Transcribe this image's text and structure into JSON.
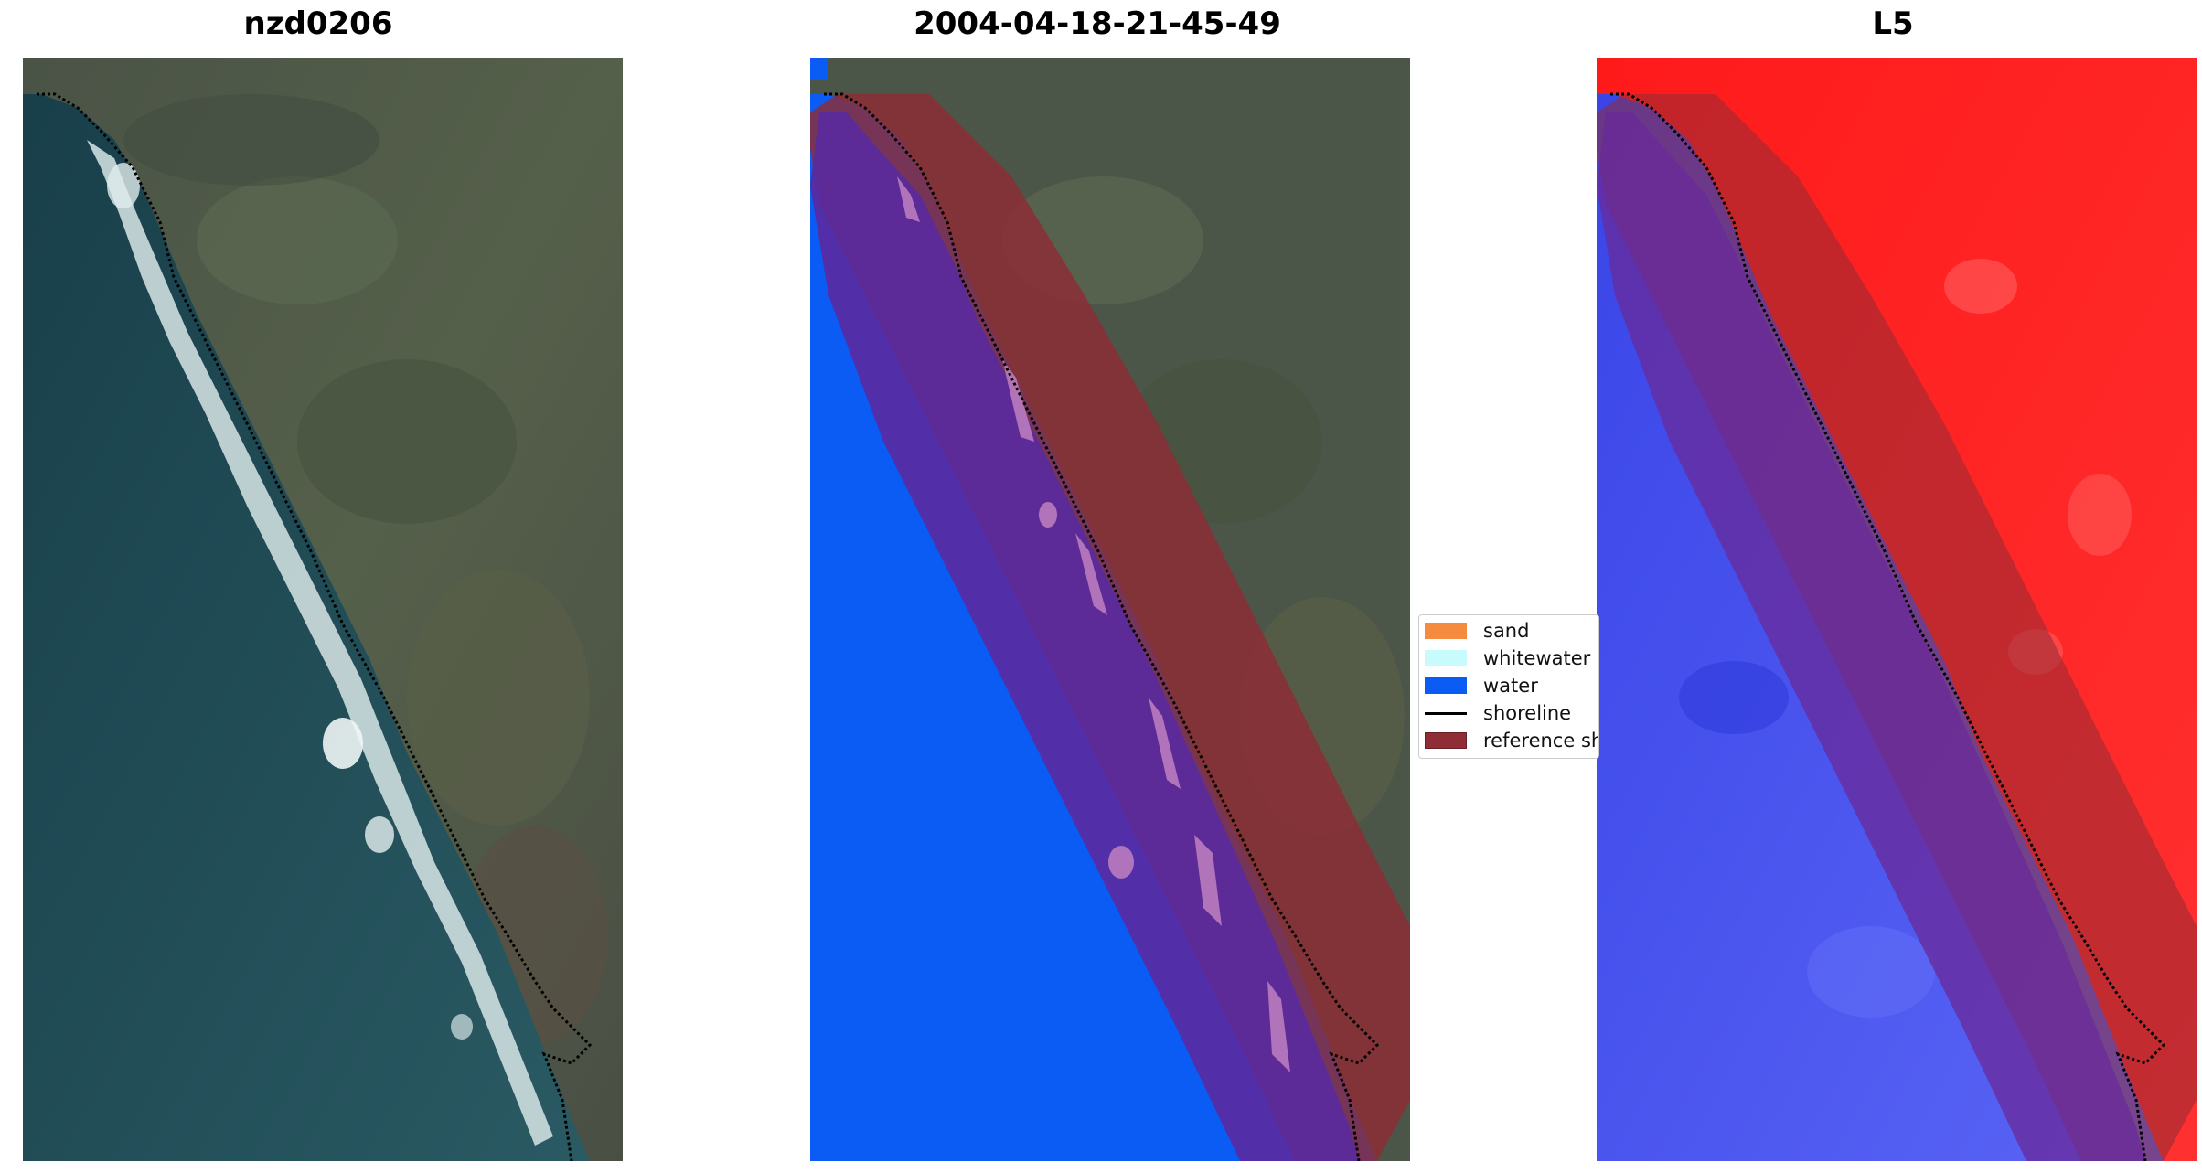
{
  "panels": [
    {
      "title": "nzd0206"
    },
    {
      "title": "2004-04-18-21-45-49"
    },
    {
      "title": "L5"
    }
  ],
  "legend": {
    "items": [
      {
        "label": "sand",
        "color": "#f58b3e"
      },
      {
        "label": "whitewater",
        "color": "#c8fcfc"
      },
      {
        "label": "water",
        "color": "#0a5cf5"
      },
      {
        "label": "shoreline",
        "color": "#000000"
      },
      {
        "label": "reference shoreline buffer",
        "color": "#8f2c35"
      }
    ]
  },
  "colors": {
    "land": "#4f5a4a",
    "sea": "#1f4f5a",
    "surf": "#d8e6e6",
    "water_class": "#0a5cf5",
    "buffer": "#8f2c35",
    "buffer_over_water": "#5a2aa0",
    "index_land": "#ff1a1a",
    "index_water": "#4a55f0"
  }
}
